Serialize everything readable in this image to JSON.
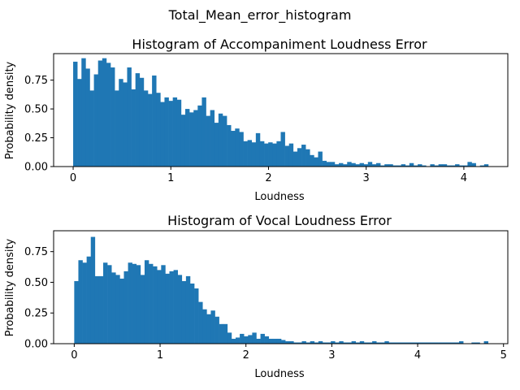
{
  "figure": {
    "suptitle": "Total_Mean_error_histogram"
  },
  "chart_data": [
    {
      "type": "bar",
      "title": "Histogram of Accompaniment Loudness Error",
      "xlabel": "Loudness",
      "ylabel": "Probability density",
      "xlim": [
        -0.2,
        4.45
      ],
      "ylim": [
        0,
        0.98
      ],
      "xticks": [
        0,
        1,
        2,
        3,
        4
      ],
      "yticks": [
        0.0,
        0.25,
        0.5,
        0.75
      ],
      "ytick_labels": [
        "0.00",
        "0.25",
        "0.50",
        "0.75"
      ],
      "bar_color": "#1f77b4",
      "bin_start": 0.0,
      "bin_width": 0.0425,
      "values": [
        0.91,
        0.76,
        0.94,
        0.85,
        0.66,
        0.8,
        0.92,
        0.94,
        0.9,
        0.86,
        0.66,
        0.76,
        0.73,
        0.86,
        0.67,
        0.81,
        0.77,
        0.66,
        0.63,
        0.79,
        0.64,
        0.56,
        0.6,
        0.57,
        0.6,
        0.58,
        0.45,
        0.5,
        0.47,
        0.49,
        0.53,
        0.6,
        0.44,
        0.49,
        0.38,
        0.46,
        0.44,
        0.36,
        0.31,
        0.33,
        0.3,
        0.22,
        0.23,
        0.21,
        0.29,
        0.22,
        0.2,
        0.21,
        0.2,
        0.22,
        0.3,
        0.18,
        0.2,
        0.13,
        0.16,
        0.19,
        0.15,
        0.1,
        0.08,
        0.13,
        0.05,
        0.04,
        0.04,
        0.02,
        0.03,
        0.02,
        0.04,
        0.03,
        0.02,
        0.03,
        0.02,
        0.04,
        0.02,
        0.03,
        0.01,
        0.02,
        0.02,
        0.01,
        0.01,
        0.02,
        0.01,
        0.03,
        0.01,
        0.02,
        0.01,
        0.0,
        0.02,
        0.01,
        0.02,
        0.02,
        0.01,
        0.01,
        0.02,
        0.01,
        0.01,
        0.04,
        0.03,
        0.0,
        0.01,
        0.02
      ]
    },
    {
      "type": "bar",
      "title": "Histogram of Vocal Loudness Error",
      "xlabel": "Loudness",
      "ylabel": "Probability density",
      "xlim": [
        -0.24,
        5.05
      ],
      "ylim": [
        0,
        0.92
      ],
      "xticks": [
        0,
        1,
        2,
        3,
        4,
        5
      ],
      "yticks": [
        0.0,
        0.25,
        0.5,
        0.75
      ],
      "ytick_labels": [
        "0.00",
        "0.25",
        "0.50",
        "0.75"
      ],
      "bar_color": "#1f77b4",
      "bin_start": 0.0,
      "bin_width": 0.0482,
      "values": [
        0.51,
        0.68,
        0.66,
        0.71,
        0.87,
        0.55,
        0.55,
        0.66,
        0.64,
        0.58,
        0.56,
        0.53,
        0.59,
        0.66,
        0.65,
        0.64,
        0.56,
        0.68,
        0.65,
        0.63,
        0.6,
        0.64,
        0.57,
        0.59,
        0.6,
        0.56,
        0.51,
        0.55,
        0.49,
        0.45,
        0.34,
        0.28,
        0.24,
        0.27,
        0.22,
        0.16,
        0.16,
        0.09,
        0.04,
        0.05,
        0.08,
        0.06,
        0.07,
        0.09,
        0.04,
        0.08,
        0.06,
        0.04,
        0.04,
        0.04,
        0.03,
        0.02,
        0.02,
        0.01,
        0.01,
        0.02,
        0.01,
        0.02,
        0.01,
        0.02,
        0.01,
        0.01,
        0.02,
        0.01,
        0.02,
        0.01,
        0.01,
        0.02,
        0.01,
        0.02,
        0.01,
        0.01,
        0.02,
        0.01,
        0.01,
        0.02,
        0.01,
        0.01,
        0.01,
        0.01,
        0.01,
        0.01,
        0.01,
        0.01,
        0.01,
        0.01,
        0.01,
        0.01,
        0.01,
        0.01,
        0.01,
        0.01,
        0.01,
        0.02,
        0.0,
        0.0,
        0.01,
        0.01,
        0.0,
        0.02
      ]
    }
  ]
}
